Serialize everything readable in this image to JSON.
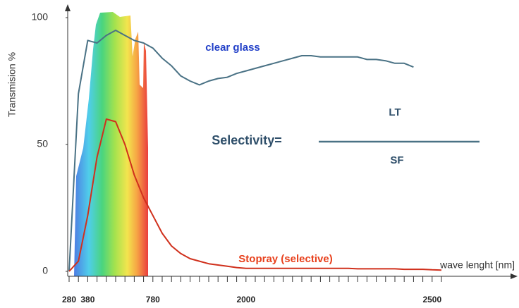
{
  "chart_data": {
    "type": "line",
    "y_label": "Transmision %",
    "x_label": "wave lenght [nm]",
    "formula": {
      "left": "Selectivity=",
      "numerator": "LT",
      "denominator": "SF"
    },
    "categories": [
      "280",
      null,
      "380",
      null,
      null,
      null,
      null,
      null,
      null,
      "780",
      null,
      null,
      null,
      null,
      null,
      null,
      null,
      null,
      null,
      "2000",
      null,
      null,
      null,
      null,
      null,
      null,
      null,
      null,
      null,
      null,
      null,
      null,
      null,
      null,
      null,
      null,
      null,
      null,
      null,
      "2500",
      null
    ],
    "series": [
      {
        "name": "clear glass",
        "color": "#4a7285",
        "label_color": "#2240c8",
        "values": [
          0,
          70,
          91,
          90,
          93,
          95,
          93,
          91,
          90,
          88,
          84,
          81,
          77,
          75,
          73.5,
          75,
          76,
          76.5,
          78,
          79,
          80,
          81,
          82,
          83,
          84,
          85,
          85,
          84.5,
          84.5,
          84.5,
          84.5,
          84.5,
          83.5,
          83.5,
          83,
          82,
          82,
          80.5,
          null,
          null,
          null
        ]
      },
      {
        "name": "Stopray (selective)",
        "color": "#d0301c",
        "label_color": "#e8401c",
        "values": [
          0,
          4,
          22,
          45,
          60,
          59,
          50,
          38,
          29,
          22,
          15,
          10,
          7,
          5,
          4,
          3,
          2.5,
          2,
          1.5,
          1.2,
          1.2,
          1.2,
          1.2,
          1.2,
          1.2,
          1.2,
          1.2,
          1.2,
          1.2,
          1.2,
          1.2,
          1,
          1,
          1,
          1,
          1,
          0.8,
          0.8,
          0.8,
          0.6,
          0.5
        ]
      }
    ],
    "ylim": [
      0,
      100
    ],
    "yticks": [
      0,
      50,
      100
    ],
    "grid": false
  }
}
